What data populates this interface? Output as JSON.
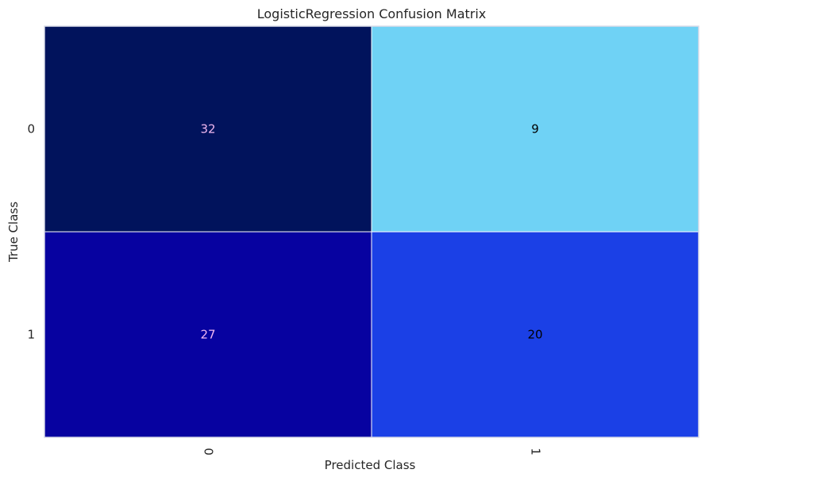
{
  "chart_data": {
    "type": "heatmap",
    "title": "LogisticRegression Confusion Matrix",
    "xlabel": "Predicted Class",
    "ylabel": "True Class",
    "x_categories": [
      "0",
      "1"
    ],
    "y_categories": [
      "0",
      "1"
    ],
    "values": [
      [
        32,
        9
      ],
      [
        27,
        20
      ]
    ],
    "cell_colors": [
      [
        "#01135c",
        "#6fd2f5"
      ],
      [
        "#0702a0",
        "#1b40e6"
      ]
    ],
    "text_colors": [
      [
        "#f0b8f0",
        "#000000"
      ],
      [
        "#f0b8f0",
        "#000000"
      ]
    ],
    "grid": false,
    "legend": "none"
  }
}
